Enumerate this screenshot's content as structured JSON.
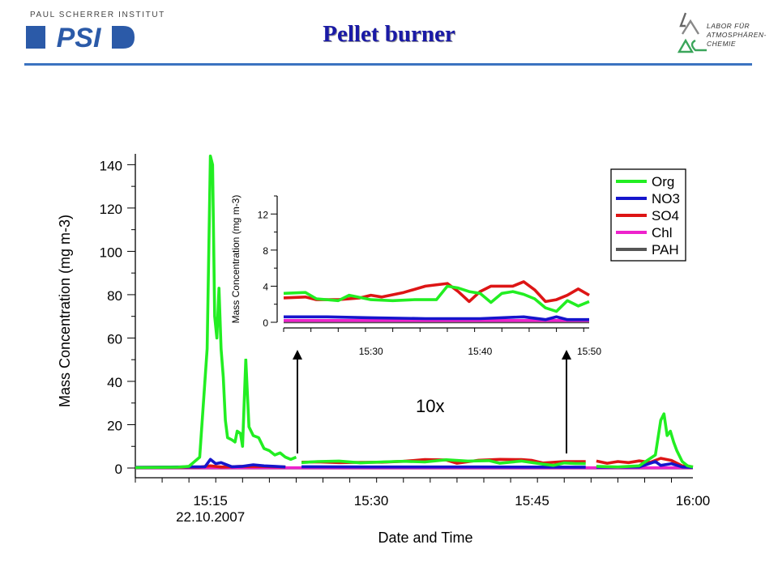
{
  "header": {
    "institute_label": "PAUL SCHERRER INSTITUT",
    "psi_logo_text": "PSI",
    "title": "Pellet burner",
    "lab_line1": "LABOR FÜR",
    "lab_line2": "ATMOSPHÄREN-",
    "lab_line3": "CHEMIE"
  },
  "colors": {
    "Org": "#22ee22",
    "NO3": "#1515cc",
    "SO4": "#dd1515",
    "Chl": "#ee22cc",
    "PAH": "#555555",
    "accent_line": "#3b73c0",
    "title_color": "#1a1aa6"
  },
  "annotation": "10x",
  "chart_data": [
    {
      "type": "line",
      "id": "main",
      "xlabel": "Date and Time",
      "ylabel": "Mass Concentration (mg m-3)",
      "ylim": [
        0,
        145
      ],
      "xlim": [
        "15:08",
        "16:00"
      ],
      "yticks": [
        0,
        20,
        40,
        60,
        80,
        100,
        120,
        140
      ],
      "xticks": [
        "15:15",
        "15:30",
        "15:45",
        "16:00"
      ],
      "xtick_sublabel": {
        "15:15": "22.10.2007"
      },
      "series": [
        {
          "name": "Org",
          "points": [
            [
              "15:08",
              0.2
            ],
            [
              "15:12",
              0.4
            ],
            [
              "15:13",
              0.8
            ],
            [
              "15:14",
              5
            ],
            [
              "15:14.7",
              55
            ],
            [
              "15:14.9",
              115
            ],
            [
              "15:15.0",
              144
            ],
            [
              "15:15.2",
              140
            ],
            [
              "15:15.4",
              70
            ],
            [
              "15:15.6",
              60
            ],
            [
              "15:15.8",
              83
            ],
            [
              "15:16.0",
              55
            ],
            [
              "15:16.2",
              42
            ],
            [
              "15:16.4",
              22
            ],
            [
              "15:16.6",
              14
            ],
            [
              "15:17",
              13
            ],
            [
              "15:17.3",
              12
            ],
            [
              "15:17.5",
              17
            ],
            [
              "15:17.8",
              16
            ],
            [
              "15:18",
              10
            ],
            [
              "15:18.3",
              50
            ],
            [
              "15:18.6",
              19
            ],
            [
              "15:19",
              15
            ],
            [
              "15:19.5",
              14
            ],
            [
              "15:20",
              9
            ],
            [
              "15:20.5",
              8
            ],
            [
              "15:21",
              6
            ],
            [
              "15:21.5",
              7
            ],
            [
              "15:22",
              5
            ],
            [
              "15:22.5",
              4
            ],
            [
              "15:23",
              5
            ],
            [
              "15:23.01",
              null
            ],
            [
              "15:23.5",
              2.5
            ],
            [
              "15:25",
              3
            ],
            [
              "15:27",
              3.2
            ],
            [
              "15:29",
              2.4
            ],
            [
              "15:31",
              2.8
            ],
            [
              "15:33",
              3.1
            ],
            [
              "15:35",
              2.8
            ],
            [
              "15:37",
              3.8
            ],
            [
              "15:39",
              3.2
            ],
            [
              "15:41",
              3.4
            ],
            [
              "15:42",
              2.2
            ],
            [
              "15:44",
              3.2
            ],
            [
              "15:46",
              1.8
            ],
            [
              "15:47",
              1.2
            ],
            [
              "15:48",
              2.3
            ],
            [
              "15:49",
              2.1
            ],
            [
              "15:50",
              2.0
            ],
            [
              "15:50.01",
              null
            ],
            [
              "15:51",
              0.8
            ],
            [
              "15:53",
              0.5
            ],
            [
              "15:55",
              1.0
            ],
            [
              "15:56.5",
              6
            ],
            [
              "15:57",
              22
            ],
            [
              "15:57.3",
              25
            ],
            [
              "15:57.6",
              15
            ],
            [
              "15:57.9",
              17
            ],
            [
              "15:58.2",
              12
            ],
            [
              "15:58.5",
              8
            ],
            [
              "15:59",
              3
            ],
            [
              "15:59.5",
              1
            ],
            [
              "16:00",
              0.5
            ]
          ]
        },
        {
          "name": "NO3",
          "points": [
            [
              "15:08",
              0.3
            ],
            [
              "15:14.5",
              0.6
            ],
            [
              "15:15",
              4
            ],
            [
              "15:15.5",
              2
            ],
            [
              "15:16",
              2.5
            ],
            [
              "15:17",
              0.6
            ],
            [
              "15:18",
              0.8
            ],
            [
              "15:19",
              1.5
            ],
            [
              "15:20",
              1.0
            ],
            [
              "15:21",
              0.8
            ],
            [
              "15:22",
              0.5
            ],
            [
              "15:22.01",
              null
            ],
            [
              "15:23.5",
              0.6
            ],
            [
              "15:30",
              0.5
            ],
            [
              "15:40",
              0.5
            ],
            [
              "15:50",
              0.4
            ],
            [
              "15:50.01",
              null
            ],
            [
              "15:51",
              0.4
            ],
            [
              "15:55",
              0.5
            ],
            [
              "15:56.5",
              3
            ],
            [
              "15:57",
              1.2
            ],
            [
              "15:58",
              2.0
            ],
            [
              "15:59",
              0.5
            ],
            [
              "16:00",
              0.3
            ]
          ]
        },
        {
          "name": "SO4",
          "points": [
            [
              "15:08",
              0.3
            ],
            [
              "15:14",
              0.4
            ],
            [
              "15:15",
              1.0
            ],
            [
              "15:16",
              0.5
            ],
            [
              "15:17",
              0.6
            ],
            [
              "15:18",
              0.8
            ],
            [
              "15:20",
              0.7
            ],
            [
              "15:22",
              0.5
            ],
            [
              "15:22.01",
              null
            ],
            [
              "15:23.5",
              2.7
            ],
            [
              "15:25",
              2.8
            ],
            [
              "15:27",
              2.5
            ],
            [
              "15:29",
              2.6
            ],
            [
              "15:31",
              2.7
            ],
            [
              "15:33",
              3.1
            ],
            [
              "15:35",
              3.9
            ],
            [
              "15:37",
              3.7
            ],
            [
              "15:38",
              2.2
            ],
            [
              "15:40",
              3.6
            ],
            [
              "15:42",
              4.0
            ],
            [
              "15:44",
              3.9
            ],
            [
              "15:45",
              3.5
            ],
            [
              "15:46",
              2.3
            ],
            [
              "15:48",
              3.0
            ],
            [
              "15:50",
              3.0
            ],
            [
              "15:50.01",
              null
            ],
            [
              "15:51",
              3.2
            ],
            [
              "15:52",
              2.2
            ],
            [
              "15:53",
              3.0
            ],
            [
              "15:54",
              2.5
            ],
            [
              "15:55",
              3.3
            ],
            [
              "15:56",
              2.6
            ],
            [
              "15:57",
              4.5
            ],
            [
              "15:58",
              3.5
            ],
            [
              "15:59",
              1.0
            ],
            [
              "16:00",
              0.5
            ]
          ]
        },
        {
          "name": "Chl",
          "points": [
            [
              "15:08",
              0.1
            ],
            [
              "16:00",
              0.1
            ]
          ]
        },
        {
          "name": "PAH",
          "points": [
            [
              "15:08",
              0.05
            ],
            [
              "16:00",
              0.05
            ]
          ]
        }
      ]
    },
    {
      "type": "line",
      "id": "inset",
      "xlabel": "",
      "ylabel": "Mass Concentration (mg m-3)",
      "ylim": [
        0,
        14
      ],
      "xlim": [
        "15:22",
        "15:50"
      ],
      "yticks": [
        0,
        4,
        8,
        12
      ],
      "xticks": [
        "15:30",
        "15:40",
        "15:50"
      ],
      "series": [
        {
          "name": "Org",
          "points": [
            [
              "15:22",
              3.2
            ],
            [
              "15:24",
              3.3
            ],
            [
              "15:25",
              2.6
            ],
            [
              "15:27",
              2.4
            ],
            [
              "15:28",
              3.0
            ],
            [
              "15:30",
              2.5
            ],
            [
              "15:32",
              2.4
            ],
            [
              "15:34",
              2.5
            ],
            [
              "15:36",
              2.5
            ],
            [
              "15:37",
              4.0
            ],
            [
              "15:38",
              3.8
            ],
            [
              "15:39",
              3.4
            ],
            [
              "15:40",
              3.2
            ],
            [
              "15:41",
              2.2
            ],
            [
              "15:42",
              3.2
            ],
            [
              "15:43",
              3.4
            ],
            [
              "15:44",
              3.1
            ],
            [
              "15:45",
              2.6
            ],
            [
              "15:46",
              1.6
            ],
            [
              "15:47",
              1.2
            ],
            [
              "15:48",
              2.4
            ],
            [
              "15:49",
              1.8
            ],
            [
              "15:50",
              2.3
            ]
          ]
        },
        {
          "name": "NO3",
          "points": [
            [
              "15:22",
              0.6
            ],
            [
              "15:26",
              0.6
            ],
            [
              "15:30",
              0.5
            ],
            [
              "15:35",
              0.4
            ],
            [
              "15:40",
              0.4
            ],
            [
              "15:44",
              0.6
            ],
            [
              "15:46",
              0.3
            ],
            [
              "15:47",
              0.6
            ],
            [
              "15:48",
              0.3
            ],
            [
              "15:50",
              0.3
            ]
          ]
        },
        {
          "name": "SO4",
          "points": [
            [
              "15:22",
              2.7
            ],
            [
              "15:24",
              2.8
            ],
            [
              "15:25",
              2.5
            ],
            [
              "15:27",
              2.5
            ],
            [
              "15:29",
              2.7
            ],
            [
              "15:30",
              3.0
            ],
            [
              "15:31",
              2.8
            ],
            [
              "15:33",
              3.3
            ],
            [
              "15:35",
              4.0
            ],
            [
              "15:37",
              4.3
            ],
            [
              "15:38",
              3.4
            ],
            [
              "15:39",
              2.3
            ],
            [
              "15:40",
              3.4
            ],
            [
              "15:41",
              4.0
            ],
            [
              "15:43",
              4.0
            ],
            [
              "15:44",
              4.5
            ],
            [
              "15:45",
              3.6
            ],
            [
              "15:46",
              2.3
            ],
            [
              "15:47",
              2.5
            ],
            [
              "15:48",
              3.0
            ],
            [
              "15:49",
              3.7
            ],
            [
              "15:50",
              3.0
            ]
          ]
        },
        {
          "name": "Chl",
          "points": [
            [
              "15:22",
              0.2
            ],
            [
              "15:50",
              0.2
            ]
          ]
        },
        {
          "name": "PAH",
          "points": [
            [
              "15:22",
              0.05
            ],
            [
              "15:50",
              0.05
            ]
          ]
        }
      ],
      "legend": [
        "Org",
        "NO3",
        "SO4",
        "Chl",
        "PAH"
      ],
      "legend_position": "top-right"
    }
  ]
}
